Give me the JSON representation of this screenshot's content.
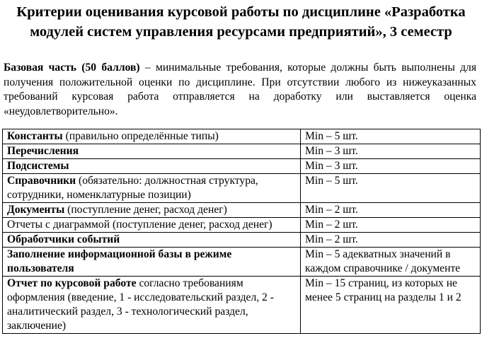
{
  "title": "Критерии оценивания курсовой работы по дисциплине «Разработка модулей систем управления ресурсами предприятий», 3 семестр",
  "intro": {
    "bold": "Базовая часть (50 баллов)",
    "text": " – минимальные требования, которые должны быть выполнены для получения положительной оценки по дисциплине. При отсутствии любого из нижеуказанных требований курсовая работа отправляется на доработку или выставляется оценка «неудовлетворительно»."
  },
  "rows": [
    {
      "bold": "Константы",
      "text": " (правильно определённые типы)",
      "req": "Min – 5 шт."
    },
    {
      "bold": "Перечисления",
      "text": "",
      "req": "Min – 3 шт."
    },
    {
      "bold": "Подсистемы",
      "text": "",
      "req": "Min – 3 шт."
    },
    {
      "bold": "Справочники",
      "text": " (обязательно: должностная структура, сотрудники, номенклатурные позиции)",
      "req": "Min – 5 шт."
    },
    {
      "bold": "Документы",
      "text": " (поступление денег, расход денег)",
      "req": "Min – 2 шт."
    },
    {
      "bold": "",
      "text": "Отчеты с диаграммой (поступление денег, расход денег)",
      "req": "Min – 2 шт."
    },
    {
      "bold": "Обработчики событий",
      "text": "",
      "req": "Min – 2 шт."
    },
    {
      "bold": "Заполнение информационной базы в режиме пользователя",
      "text": "",
      "req": "Min – 5 адекватных значений в каждом справочнике / документе"
    },
    {
      "bold": "Отчет по курсовой работе",
      "text": " согласно требованиям оформления (введение, 1 - исследовательский раздел, 2 - аналитический раздел, 3 - технологический раздел, заключение)",
      "req": "Min – 15 страниц, из которых не менее 5 страниц на разделы 1 и 2"
    }
  ]
}
